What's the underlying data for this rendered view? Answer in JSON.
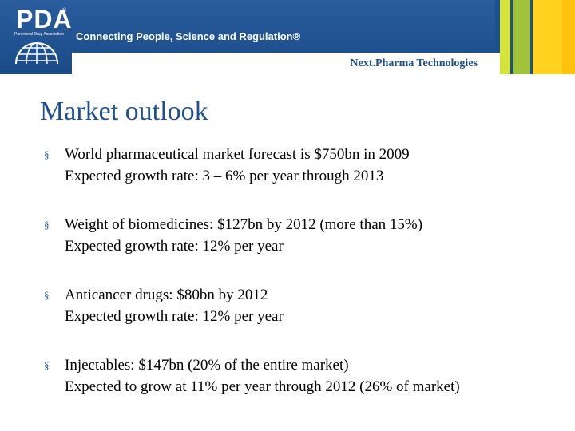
{
  "header": {
    "logo_text": "PDA",
    "logo_trademark": "®",
    "logo_subtext": "Parenteral Drug Association",
    "tagline": "Connecting People, Science and Regulation®",
    "event_name": "Next.Pharma Technologies",
    "colors": {
      "brand_blue": "#1e4f8e",
      "bar_lime": "#d5e43a",
      "bar_green": "#9fc43b",
      "bar_yellow": "#ffd21f",
      "bar_gold": "#ffc20e"
    }
  },
  "slide": {
    "title": "Market outlook",
    "bullet_marker": "§",
    "bullets": [
      {
        "line1": "World pharmaceutical market forecast is $750bn in 2009",
        "line2": "Expected growth rate: 3 – 6% per year through 2013"
      },
      {
        "line1": "Weight of biomedicines: $127bn by 2012  (more than 15%)",
        "line2": "Expected growth rate: 12% per year"
      },
      {
        "line1": "Anticancer drugs: $80bn by 2012",
        "line2": "Expected growth rate: 12% per year"
      },
      {
        "line1": "Injectables: $147bn (20% of the entire market)",
        "line2": "Expected to grow at 11% per year through 2012 (26% of market)"
      }
    ]
  }
}
